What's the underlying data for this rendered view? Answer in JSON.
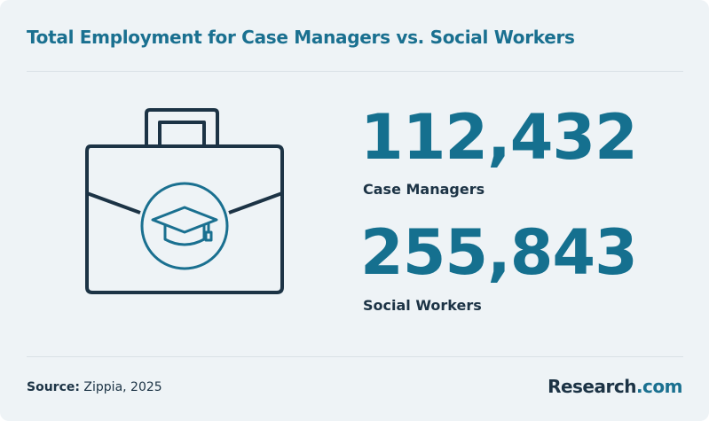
{
  "header": {
    "title": "Total Employment for Case Managers vs. Social Workers"
  },
  "stats": [
    {
      "value": "112,432",
      "label": "Case Managers"
    },
    {
      "value": "255,843",
      "label": "Social Workers"
    }
  ],
  "footer": {
    "source_label": "Source:",
    "source": "Zippia, 2025",
    "logo": {
      "main": "Research",
      "suffix": ".com"
    }
  }
}
